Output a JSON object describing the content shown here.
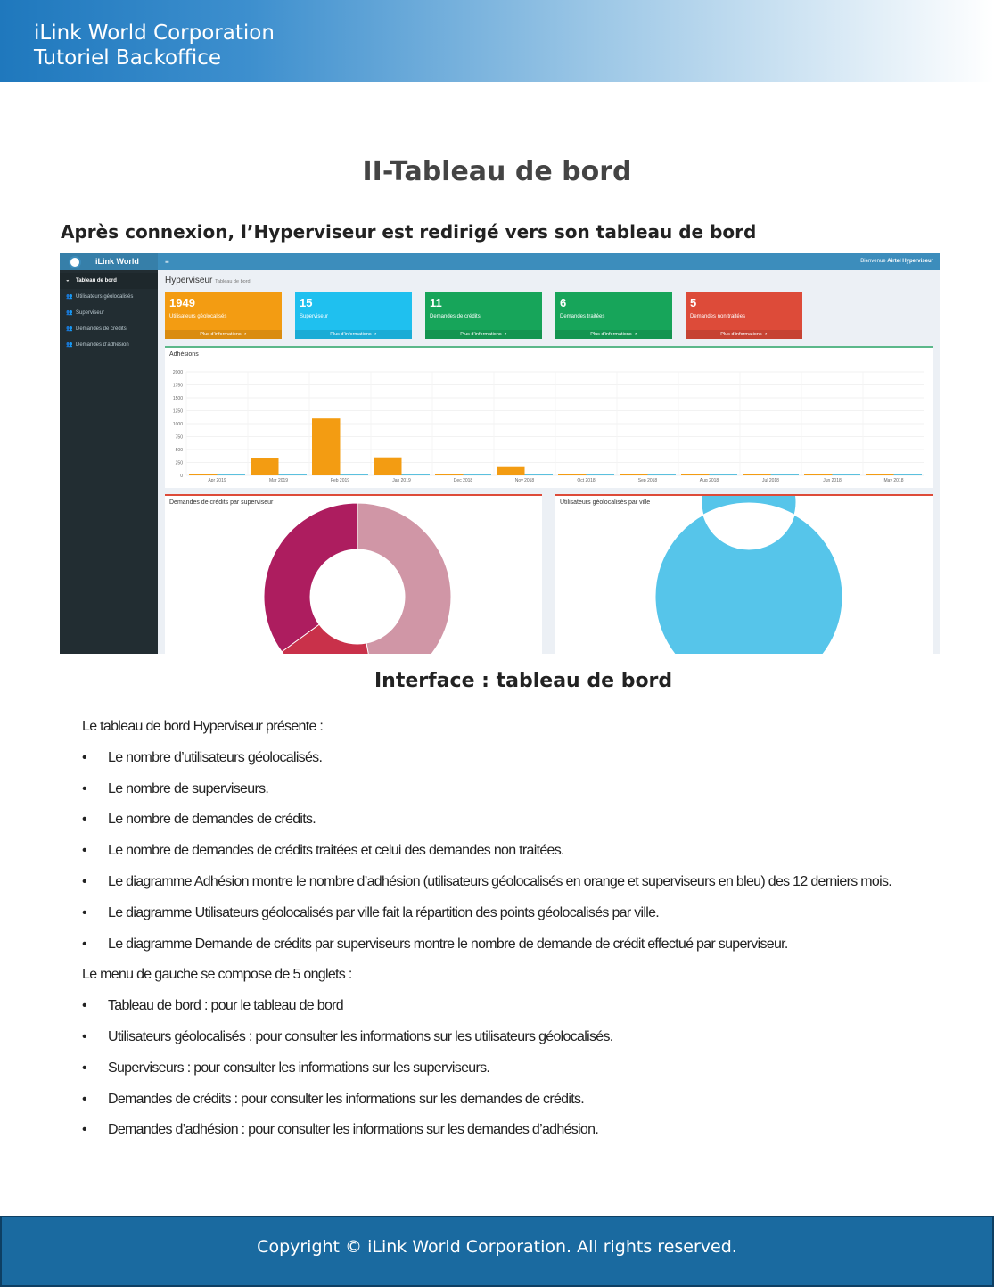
{
  "banner": {
    "line1": "iLink World Corporation",
    "line2": "Tutoriel Backoffice"
  },
  "title": "II-Tableau de bord",
  "subtitle": "Après connexion, l’Hyperviseur est redirigé vers son tableau de bord",
  "screenshot": {
    "logo": "iLink World",
    "menu_icon": "≡",
    "welcome_prefix": "Bienvenue ",
    "welcome_user": "Airtel Hyperviseur",
    "sidebar": [
      {
        "label": "Tableau de bord",
        "icon": "dashboard-icon"
      },
      {
        "label": "Utilisateurs géolocalisés",
        "icon": "users-icon"
      },
      {
        "label": "Superviseur",
        "icon": "users-icon"
      },
      {
        "label": "Demandes de crédits",
        "icon": "users-icon"
      },
      {
        "label": "Demandes d’adhésion",
        "icon": "users-icon"
      }
    ],
    "page_title": "Hyperviseur",
    "page_subtitle": "Tableau de bord",
    "cards": [
      {
        "value": "1949",
        "label": "Utilisateurs géolocalisés",
        "more": "Plus d’informations ➔",
        "color": "#f39c12"
      },
      {
        "value": "15",
        "label": "Superviseur",
        "more": "Plus d’informations ➔",
        "color": "#1fc0ef"
      },
      {
        "value": "11",
        "label": "Demandes de crédits",
        "more": "Plus d’informations ➔",
        "color": "#17a55a"
      },
      {
        "value": "6",
        "label": "Demandes traitées",
        "more": "Plus d’informations ➔",
        "color": "#17a55a"
      },
      {
        "value": "5",
        "label": "Demandes non traitées",
        "more": "Plus d’informations ➔",
        "color": "#dd4b39"
      }
    ],
    "donut1_title": "Demandes de crédits par superviseur",
    "donut2_title": "Utilisateurs géolocalisés par ville"
  },
  "chart_data": [
    {
      "type": "bar",
      "title": "Adhésions",
      "categories": [
        "Apr 2019",
        "Mar 2019",
        "Feb 2019",
        "Jan 2019",
        "Dec 2018",
        "Nov 2018",
        "Oct 2018",
        "Sep 2018",
        "Aug 2018",
        "Jul 2018",
        "Jun 2018",
        "May 2018"
      ],
      "series": [
        {
          "color": "#f39c12",
          "values": [
            10,
            330,
            1100,
            350,
            10,
            160,
            5,
            5,
            5,
            5,
            5,
            5
          ]
        },
        {
          "color": "#5bc0de",
          "values": [
            10,
            10,
            10,
            20,
            10,
            10,
            5,
            5,
            5,
            5,
            5,
            5
          ]
        }
      ],
      "yticks": [
        0,
        250,
        500,
        750,
        1000,
        1250,
        1500,
        1750,
        2000
      ],
      "ylim": [
        0,
        2000
      ],
      "grid": true
    },
    {
      "type": "pie",
      "donut": true,
      "values": [
        0.47,
        0.18,
        0.35
      ],
      "colors": [
        "#d096a6",
        "#c9314a",
        "#ad1d5f"
      ]
    },
    {
      "type": "pie",
      "donut": true,
      "values": [
        1
      ],
      "colors": [
        "#56c5ea"
      ]
    }
  ],
  "caption": "Interface : tableau de bord",
  "body": {
    "intro1": "Le tableau de bord Hyperviseur présente :",
    "list1": [
      "Le nombre d’utilisateurs géolocalisés.",
      "Le nombre de superviseurs.",
      "Le nombre de demandes de crédits.",
      "Le nombre de demandes de crédits traitées et celui des demandes non traitées.",
      "Le diagramme Adhésion montre le nombre d’adhésion (utilisateurs géolocalisés en orange et superviseurs en bleu) des 12 derniers mois.",
      "Le diagramme Utilisateurs géolocalisés par ville fait la répartition des points géolocalisés par ville.",
      "Le diagramme Demande de crédits par superviseurs montre le nombre de demande de crédit effectué par superviseur."
    ],
    "intro2": "Le menu de gauche se compose de 5 onglets :",
    "list2": [
      "Tableau de bord : pour le tableau de bord",
      "Utilisateurs géolocalisés : pour consulter les informations sur les utilisateurs géolocalisés.",
      "Superviseurs : pour consulter les informations sur les superviseurs.",
      "Demandes de crédits : pour consulter les informations sur les demandes de crédits.",
      "Demandes d’adhésion : pour consulter les informations sur les demandes d’adhésion."
    ]
  },
  "footer": "Copyright © iLink World Corporation. All rights reserved."
}
